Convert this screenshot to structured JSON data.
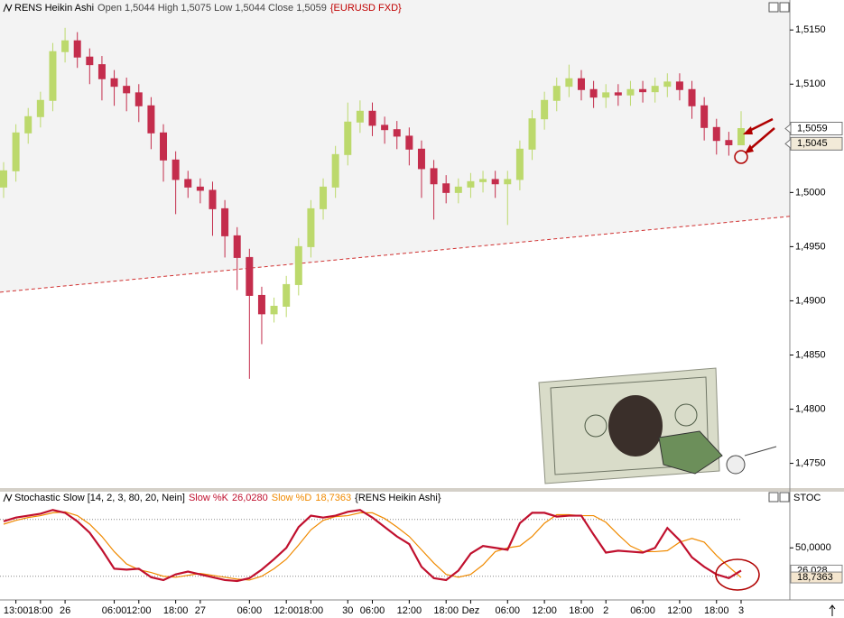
{
  "chart_data": [
    {
      "type": "candlestick",
      "title": "RENS Heikin Ashi",
      "subtitle": "Open 1,5044 High 1,5075 Low 1,5044 Close 1,5059",
      "symbol": "{EURUSD FXD}",
      "categories": [
        null,
        "13:00",
        null,
        "18:00",
        null,
        "26",
        null,
        null,
        null,
        "06:00",
        null,
        "12:00",
        null,
        null,
        "18:00",
        null,
        "27",
        null,
        null,
        null,
        "06:00",
        null,
        null,
        "12:00",
        null,
        "18:00",
        null,
        null,
        "30",
        null,
        "06:00",
        null,
        null,
        "12:00",
        null,
        null,
        "18:00",
        null,
        "Dez",
        null,
        null,
        "06:00",
        null,
        null,
        "12:00",
        null,
        null,
        "18:00",
        null,
        "2",
        null,
        null,
        "06:00",
        null,
        null,
        "12:00",
        null,
        null,
        "18:00",
        null,
        "3"
      ],
      "open": [
        1.5005,
        1.502,
        1.5055,
        1.507,
        1.5085,
        1.513,
        1.514,
        1.5125,
        1.5118,
        1.5105,
        1.5098,
        1.5092,
        1.508,
        1.5055,
        1.503,
        1.5012,
        1.5005,
        1.5002,
        1.4985,
        1.496,
        1.494,
        1.4905,
        1.4888,
        1.4895,
        1.4915,
        1.495,
        1.4985,
        1.5005,
        1.5035,
        1.5065,
        1.5075,
        1.5062,
        1.5058,
        1.5052,
        1.504,
        1.5022,
        1.5008,
        1.5,
        1.5005,
        1.501,
        1.5012,
        1.5008,
        1.5012,
        1.504,
        1.5068,
        1.5085,
        1.5098,
        1.5105,
        1.5095,
        1.5088,
        1.5092,
        1.509,
        1.5095,
        1.5093,
        1.5098,
        1.5102,
        1.5095,
        1.508,
        1.506,
        1.5048,
        1.5044
      ],
      "high": [
        1.5028,
        1.5063,
        1.5078,
        1.5093,
        1.5138,
        1.5152,
        1.5148,
        1.5133,
        1.5126,
        1.5113,
        1.5106,
        1.51,
        1.5088,
        1.5063,
        1.5038,
        1.502,
        1.5013,
        1.501,
        1.4993,
        1.4968,
        1.4948,
        1.4913,
        1.4903,
        1.4923,
        1.4958,
        1.4993,
        1.5013,
        1.5043,
        1.5083,
        1.5085,
        1.5083,
        1.507,
        1.5066,
        1.506,
        1.5048,
        1.503,
        1.5016,
        1.5013,
        1.5018,
        1.502,
        1.502,
        1.502,
        1.5048,
        1.5076,
        1.5093,
        1.5106,
        1.5118,
        1.5113,
        1.5103,
        1.51,
        1.51,
        1.5103,
        1.5103,
        1.5106,
        1.511,
        1.511,
        1.5103,
        1.5088,
        1.5068,
        1.5056,
        1.5075
      ],
      "low": [
        1.4995,
        1.501,
        1.5045,
        1.506,
        1.5075,
        1.512,
        1.5115,
        1.51,
        1.5085,
        1.508,
        1.5075,
        1.5065,
        1.504,
        1.501,
        1.498,
        1.4995,
        1.499,
        1.496,
        1.494,
        1.491,
        1.4828,
        1.486,
        1.488,
        1.4885,
        1.4905,
        1.494,
        1.4975,
        1.4995,
        1.5025,
        1.5055,
        1.5052,
        1.5045,
        1.504,
        1.5025,
        1.4995,
        1.4975,
        1.499,
        1.499,
        1.4995,
        1.5,
        1.4995,
        1.497,
        1.5002,
        1.503,
        1.5058,
        1.5075,
        1.5088,
        1.5085,
        1.5078,
        1.5078,
        1.508,
        1.508,
        1.5083,
        1.5083,
        1.5088,
        1.5085,
        1.5068,
        1.5048,
        1.5035,
        1.5034,
        1.5044
      ],
      "close": [
        1.502,
        1.5055,
        1.507,
        1.5085,
        1.513,
        1.514,
        1.5125,
        1.5118,
        1.5105,
        1.5098,
        1.5092,
        1.508,
        1.5055,
        1.503,
        1.5012,
        1.5005,
        1.5002,
        1.4985,
        1.496,
        1.494,
        1.4905,
        1.4888,
        1.4895,
        1.4915,
        1.495,
        1.4985,
        1.5005,
        1.5035,
        1.5065,
        1.5075,
        1.5062,
        1.5058,
        1.5052,
        1.504,
        1.5022,
        1.5008,
        1.5,
        1.5005,
        1.501,
        1.5012,
        1.5008,
        1.5012,
        1.504,
        1.5068,
        1.5085,
        1.5098,
        1.5105,
        1.5095,
        1.5088,
        1.5092,
        1.509,
        1.5095,
        1.5093,
        1.5098,
        1.5102,
        1.5095,
        1.508,
        1.506,
        1.5048,
        1.5044,
        1.5059
      ],
      "up_color": "#bcd96c",
      "down_color": "#c42d4c",
      "ylim": [
        1.4728,
        1.5171
      ],
      "yticks": [
        {
          "value": 1.515,
          "label": "1,5150"
        },
        {
          "value": 1.51,
          "label": "1,5100"
        },
        {
          "value": 1.5,
          "label": "1,5000"
        },
        {
          "value": 1.495,
          "label": "1,4950"
        },
        {
          "value": 1.49,
          "label": "1,4900"
        },
        {
          "value": 1.485,
          "label": "1,4850"
        },
        {
          "value": 1.48,
          "label": "1,4800"
        },
        {
          "value": 1.475,
          "label": "1,4750"
        }
      ],
      "trendline": [
        1.4908,
        1.4978
      ],
      "price_labels": [
        {
          "value": 1.5059,
          "label": "1,5059"
        },
        {
          "value": 1.5045,
          "label": "1,5045"
        }
      ]
    },
    {
      "type": "line",
      "title": "Stochastic Slow [14, 2, 3, 80, 20, Nein]",
      "source": "{RENS Heikin Ashi}",
      "axis_name": "STOC",
      "series": [
        {
          "name": "Slow %K",
          "legend_value": "26,0280",
          "color": "#c0102e",
          "values": [
            78,
            82,
            84,
            86,
            90,
            87,
            78,
            66,
            48,
            28,
            27,
            28,
            19,
            16,
            22,
            25,
            22,
            19,
            16,
            15,
            18,
            27,
            38,
            50,
            72,
            84,
            82,
            84,
            88,
            90,
            82,
            72,
            62,
            54,
            30,
            18,
            16,
            26,
            44,
            52,
            50,
            48,
            76,
            87,
            87,
            83,
            84,
            84,
            64,
            45,
            47,
            46,
            45,
            50,
            71,
            58,
            40,
            30,
            22,
            18,
            26.028
          ]
        },
        {
          "name": "Slow %D",
          "legend_value": "18,7363",
          "color": "#f08a00",
          "values": [
            75,
            79,
            82,
            84,
            87,
            88,
            84,
            75,
            62,
            46,
            33,
            27,
            24,
            20,
            19,
            21,
            23,
            21,
            19,
            17,
            16,
            20,
            28,
            38,
            53,
            69,
            79,
            83,
            84,
            87,
            87,
            81,
            72,
            62,
            48,
            34,
            22,
            19,
            22,
            32,
            46,
            50,
            52,
            62,
            76,
            85,
            85,
            84,
            84,
            77,
            64,
            52,
            46,
            46,
            47,
            56,
            60,
            56,
            42,
            30,
            18.7363
          ]
        }
      ],
      "ylim": [
        -5,
        95
      ],
      "yticks": [
        {
          "value": 50,
          "label": "50,0000"
        }
      ],
      "levels": [
        80,
        20
      ],
      "value_labels": [
        {
          "value": 26.028,
          "label": "26,028"
        },
        {
          "value": 18.7363,
          "label": "18,7363"
        }
      ]
    }
  ]
}
